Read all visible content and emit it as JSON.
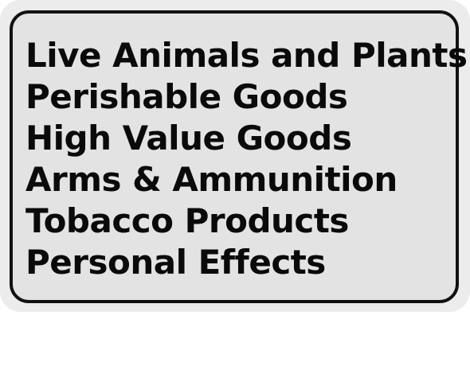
{
  "sign": {
    "lines": [
      "Live Animals and Plants",
      "Perishable Goods",
      "High Value Goods",
      "Arms & Ammunition",
      "Tobacco Products",
      "Personal Effects"
    ]
  }
}
